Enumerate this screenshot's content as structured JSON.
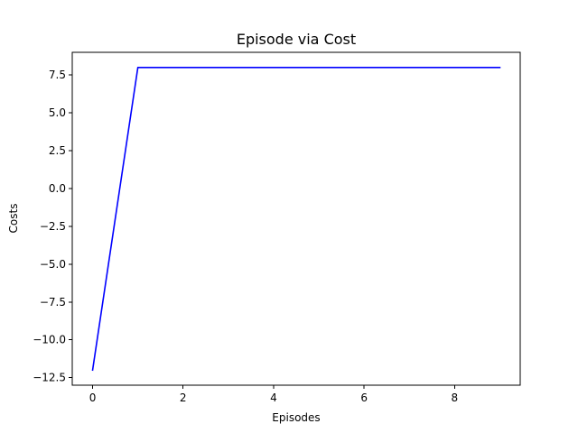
{
  "chart_data": {
    "type": "line",
    "title": "Episode via Cost",
    "xlabel": "Episodes",
    "ylabel": "Costs",
    "x": [
      0,
      1,
      2,
      3,
      4,
      5,
      6,
      7,
      8,
      9
    ],
    "series": [
      {
        "name": "Costs",
        "color": "#0000ff",
        "values": [
          -12,
          8,
          8,
          8,
          8,
          8,
          8,
          8,
          8,
          8
        ]
      }
    ],
    "xlim": [
      -0.45,
      9.45
    ],
    "ylim": [
      -13.0,
      9.0
    ],
    "xticks": [
      0,
      2,
      4,
      6,
      8
    ],
    "xtick_labels": [
      "0",
      "2",
      "4",
      "6",
      "8"
    ],
    "yticks": [
      -12.5,
      -10.0,
      -7.5,
      -5.0,
      -2.5,
      0.0,
      2.5,
      5.0,
      7.5
    ],
    "ytick_labels": [
      "−12.5",
      "−10.0",
      "−7.5",
      "−5.0",
      "−2.5",
      "0.0",
      "2.5",
      "5.0",
      "7.5"
    ],
    "grid": false,
    "legend": "none"
  }
}
